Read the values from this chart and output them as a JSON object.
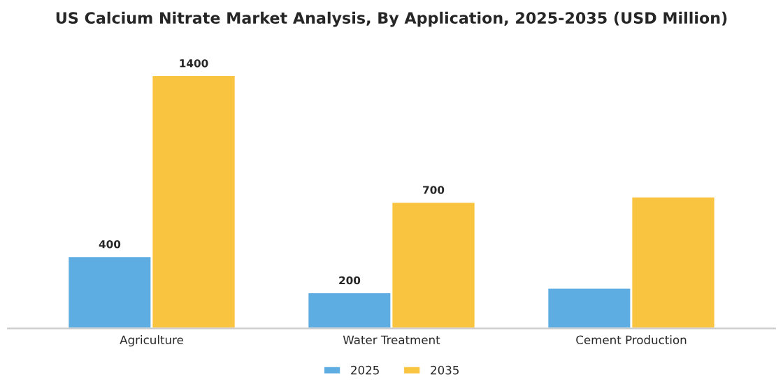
{
  "chart_data": {
    "type": "bar",
    "title": "US Calcium Nitrate Market Analysis, By Application, 2025-2035 (USD Million)",
    "categories": [
      "Agriculture",
      "Water Treatment",
      "Cement Production"
    ],
    "series": [
      {
        "name": "2025",
        "color": "#5dade2",
        "values": [
          400,
          200,
          225
        ],
        "value_labels": [
          "400",
          "200",
          null
        ]
      },
      {
        "name": "2035",
        "color": "#f9c440",
        "values": [
          1400,
          700,
          730
        ],
        "value_labels": [
          "1400",
          "700",
          null
        ]
      }
    ],
    "legend": "bottom",
    "grid": false,
    "tick_labels": "x"
  }
}
